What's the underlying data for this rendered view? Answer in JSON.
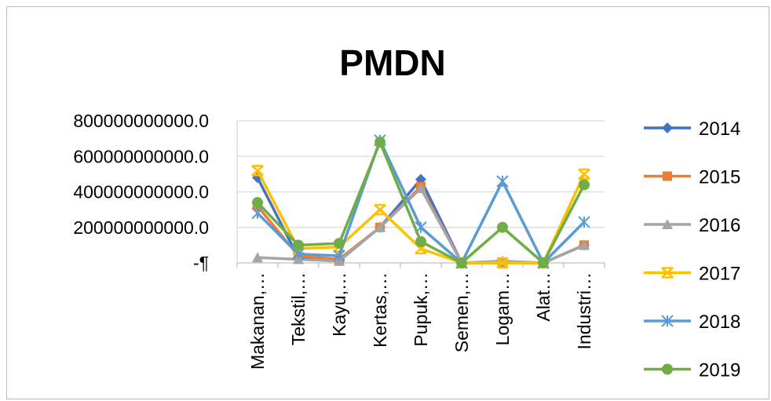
{
  "chart_data": {
    "type": "line",
    "title": "PMDN",
    "xlabel": "",
    "ylabel": "",
    "ylim": [
      0,
      800000000000
    ],
    "y_ticks": [
      0,
      200000000000,
      400000000000,
      600000000000,
      800000000000
    ],
    "y_tick_labels": [
      "-¶",
      "200000000000.0",
      "400000000000.0",
      "600000000000.0",
      "800000000000.0"
    ],
    "grid": true,
    "legend_position": "right",
    "categories": [
      "Makanan,…",
      "Tekstil,…",
      "Kayu,…",
      "Kertas,…",
      "Pupuk,…",
      "Semen,…",
      "Logam…",
      "Alat…",
      "Industri…"
    ],
    "series": [
      {
        "name": "2014",
        "color": "#4472C4",
        "marker": "diamond",
        "values": [
          480000000000,
          30000000000,
          20000000000,
          200000000000,
          470000000000,
          0,
          0,
          0,
          100000000000
        ]
      },
      {
        "name": "2015",
        "color": "#ED7D31",
        "marker": "square",
        "values": [
          320000000000,
          40000000000,
          20000000000,
          200000000000,
          430000000000,
          0,
          0,
          0,
          100000000000
        ]
      },
      {
        "name": "2016",
        "color": "#A5A5A5",
        "marker": "triangle",
        "values": [
          30000000000,
          20000000000,
          10000000000,
          200000000000,
          420000000000,
          0,
          10000000000,
          0,
          100000000000
        ]
      },
      {
        "name": "2017",
        "color": "#FFC000",
        "marker": "star",
        "values": [
          520000000000,
          80000000000,
          90000000000,
          300000000000,
          80000000000,
          0,
          0,
          0,
          500000000000
        ]
      },
      {
        "name": "2018",
        "color": "#5B9BD5",
        "marker": "x",
        "values": [
          280000000000,
          50000000000,
          40000000000,
          690000000000,
          200000000000,
          0,
          460000000000,
          0,
          230000000000
        ]
      },
      {
        "name": "2019",
        "color": "#70AD47",
        "marker": "circle",
        "values": [
          340000000000,
          100000000000,
          110000000000,
          680000000000,
          120000000000,
          0,
          200000000000,
          0,
          440000000000
        ]
      }
    ]
  }
}
